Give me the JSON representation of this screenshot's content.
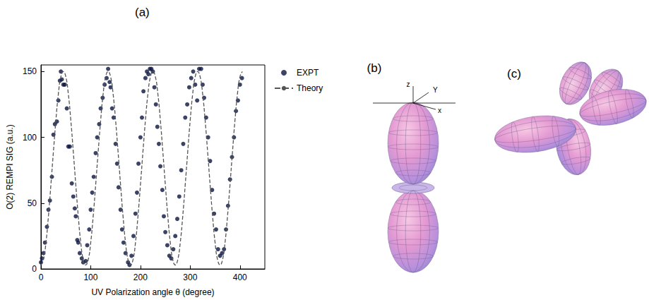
{
  "chart_data": {
    "type": "scatter",
    "title": "(a)",
    "x_label": "UV Polarization angle θ (degree)",
    "y_label": "O(2) REMPI SIG (a.u.)",
    "xlim": [
      0,
      450
    ],
    "xticks": [
      0,
      100,
      200,
      300,
      400
    ],
    "ylim": [
      0,
      155
    ],
    "yticks": [
      0,
      50,
      100,
      150
    ],
    "grid": false,
    "legend": "right",
    "series": [
      {
        "name": "EXPT",
        "type": "scatter",
        "marker": "circle",
        "color": "#0b1540",
        "x": [
          0,
          2,
          5,
          8,
          12,
          15,
          18,
          22,
          25,
          28,
          32,
          35,
          38,
          40,
          42,
          45,
          48,
          52,
          55,
          58,
          62,
          65,
          68,
          70,
          73,
          75,
          78,
          82,
          85,
          90,
          93,
          97,
          100,
          103,
          106,
          110,
          113,
          117,
          120,
          124,
          128,
          132,
          135,
          138,
          140,
          143,
          146,
          150,
          153,
          156,
          160,
          163,
          166,
          170,
          175,
          178,
          182,
          186,
          190,
          193,
          196,
          200,
          203,
          206,
          210,
          213,
          216,
          219,
          222,
          225,
          228,
          231,
          234,
          237,
          240,
          244,
          247,
          250,
          254,
          258,
          262,
          266,
          270,
          274,
          278,
          282,
          286,
          290,
          294,
          298,
          302,
          306,
          310,
          314,
          318,
          322,
          325,
          328,
          332,
          336,
          340,
          344,
          348,
          352,
          356,
          360,
          364,
          368,
          372,
          376,
          380,
          384,
          388,
          392,
          396,
          400,
          404
        ],
        "values": [
          5,
          8,
          12,
          20,
          32,
          45,
          52,
          70,
          102,
          110,
          112,
          128,
          143,
          150,
          144,
          140,
          140,
          122,
          93,
          93,
          65,
          55,
          46,
          40,
          22,
          20,
          12,
          8,
          5,
          6,
          18,
          30,
          45,
          58,
          70,
          88,
          100,
          110,
          122,
          130,
          140,
          145,
          152,
          142,
          138,
          122,
          115,
          95,
          80,
          62,
          45,
          30,
          20,
          12,
          5,
          3,
          10,
          25,
          42,
          58,
          80,
          100,
          115,
          135,
          145,
          150,
          148,
          152,
          152,
          150,
          138,
          125,
          108,
          95,
          78,
          60,
          40,
          28,
          18,
          10,
          8,
          15,
          25,
          38,
          55,
          75,
          95,
          115,
          125,
          138,
          145,
          150,
          140,
          128,
          152,
          152,
          140,
          130,
          115,
          100,
          82,
          60,
          42,
          30,
          15,
          10,
          12,
          15,
          30,
          48,
          68,
          85,
          100,
          120,
          128,
          140,
          145
        ]
      },
      {
        "name": "Theory",
        "type": "line",
        "line_style": "dashed",
        "color": "#555555",
        "x": [
          0,
          5,
          10,
          15,
          20,
          25,
          30,
          35,
          40,
          45,
          50,
          55,
          60,
          65,
          70,
          75,
          80,
          85,
          90,
          95,
          100,
          105,
          110,
          115,
          120,
          125,
          130,
          135,
          140,
          145,
          150,
          155,
          160,
          165,
          170,
          175,
          180,
          185,
          190,
          195,
          200,
          205,
          210,
          215,
          220,
          225,
          230,
          235,
          240,
          245,
          250,
          255,
          260,
          265,
          270,
          275,
          280,
          285,
          290,
          295,
          300,
          305,
          310,
          315,
          320,
          325,
          330,
          335,
          340,
          345,
          350,
          355,
          360,
          365,
          370,
          375,
          380,
          385,
          390,
          395,
          400,
          405
        ],
        "values": [
          3,
          7,
          20,
          40,
          64,
          89,
          113,
          133,
          146,
          150,
          146,
          133,
          113,
          89,
          64,
          40,
          20,
          7,
          3,
          7,
          20,
          40,
          64,
          89,
          113,
          133,
          146,
          150,
          146,
          133,
          113,
          89,
          64,
          40,
          20,
          7,
          3,
          7,
          20,
          40,
          64,
          89,
          113,
          133,
          146,
          150,
          146,
          133,
          113,
          89,
          64,
          40,
          20,
          7,
          3,
          7,
          20,
          40,
          64,
          89,
          113,
          133,
          146,
          150,
          146,
          133,
          113,
          89,
          64,
          40,
          20,
          7,
          3,
          7,
          20,
          40,
          64,
          89,
          113,
          133,
          146,
          150
        ]
      }
    ]
  },
  "diagrams": [
    {
      "label": "(b)",
      "axis_labels": [
        "z",
        "Y",
        "x"
      ]
    },
    {
      "label": "(c)"
    }
  ]
}
